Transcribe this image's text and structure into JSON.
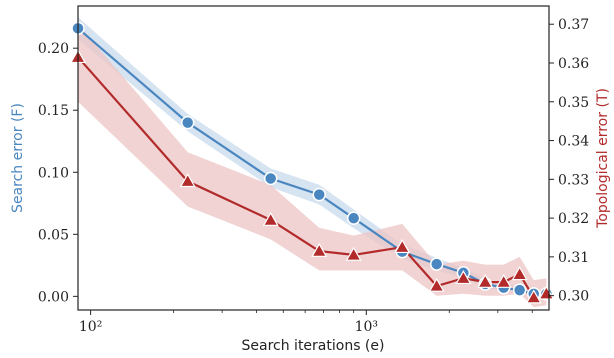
{
  "chart_data": {
    "type": "line",
    "xscale": "log",
    "xlim": [
      90,
      4600
    ],
    "xlabel": "Search iterations (e)",
    "x_ticks": [
      {
        "value": 100,
        "label": "10²"
      },
      {
        "value": 1000,
        "label": "10³"
      }
    ],
    "left_axis": {
      "label": "Search error (F)",
      "color": "#4a86c0",
      "ylim": [
        -0.011,
        0.234
      ],
      "ticks": [
        {
          "value": 0.0,
          "label": "0.00"
        },
        {
          "value": 0.05,
          "label": "0.05"
        },
        {
          "value": 0.1,
          "label": "0.10"
        },
        {
          "value": 0.15,
          "label": "0.15"
        },
        {
          "value": 0.2,
          "label": "0.20"
        }
      ]
    },
    "right_axis": {
      "label": "Topological error (T)",
      "color": "#b22a2a",
      "ylim": [
        0.2963,
        0.3747
      ],
      "ticks": [
        {
          "value": 0.3,
          "label": "0.30"
        },
        {
          "value": 0.31,
          "label": "0.31"
        },
        {
          "value": 0.32,
          "label": "0.32"
        },
        {
          "value": 0.33,
          "label": "0.33"
        },
        {
          "value": 0.34,
          "label": "0.34"
        },
        {
          "value": 0.35,
          "label": "0.35"
        },
        {
          "value": 0.36,
          "label": "0.36"
        },
        {
          "value": 0.37,
          "label": "0.37"
        }
      ]
    },
    "series": [
      {
        "axis": "left",
        "marker": "circle",
        "color": "#4a86c0",
        "band_color": "#c8d9ec",
        "points": [
          {
            "x": 90,
            "y": 0.216,
            "lo": 0.207,
            "hi": 0.225
          },
          {
            "x": 225,
            "y": 0.14,
            "lo": 0.133,
            "hi": 0.147
          },
          {
            "x": 450,
            "y": 0.095,
            "lo": 0.088,
            "hi": 0.103
          },
          {
            "x": 675,
            "y": 0.082,
            "lo": 0.074,
            "hi": 0.09
          },
          {
            "x": 900,
            "y": 0.063,
            "lo": 0.055,
            "hi": 0.07
          },
          {
            "x": 1350,
            "y": 0.036,
            "lo": 0.03,
            "hi": 0.042
          },
          {
            "x": 1800,
            "y": 0.026,
            "lo": 0.021,
            "hi": 0.031
          },
          {
            "x": 2250,
            "y": 0.019,
            "lo": 0.015,
            "hi": 0.023
          },
          {
            "x": 2700,
            "y": 0.01,
            "lo": 0.007,
            "hi": 0.014
          },
          {
            "x": 3150,
            "y": 0.007,
            "lo": 0.004,
            "hi": 0.01
          },
          {
            "x": 3600,
            "y": 0.005,
            "lo": 0.003,
            "hi": 0.008
          },
          {
            "x": 4050,
            "y": 0.002,
            "lo": 0.0,
            "hi": 0.004
          },
          {
            "x": 4500,
            "y": 0.002,
            "lo": 0.0,
            "hi": 0.004
          }
        ]
      },
      {
        "axis": "right",
        "marker": "triangle",
        "color": "#b22a2a",
        "band_color": "#ecc4c4",
        "points": [
          {
            "x": 90,
            "y": 0.3615,
            "lo": 0.35,
            "hi": 0.37
          },
          {
            "x": 225,
            "y": 0.3295,
            "lo": 0.323,
            "hi": 0.337
          },
          {
            "x": 450,
            "y": 0.3195,
            "lo": 0.3145,
            "hi": 0.3285
          },
          {
            "x": 675,
            "y": 0.3115,
            "lo": 0.3065,
            "hi": 0.3175
          },
          {
            "x": 900,
            "y": 0.3105,
            "lo": 0.3065,
            "hi": 0.3155
          },
          {
            "x": 1350,
            "y": 0.3125,
            "lo": 0.3065,
            "hi": 0.3185
          },
          {
            "x": 1800,
            "y": 0.3025,
            "lo": 0.3,
            "hi": 0.308
          },
          {
            "x": 2250,
            "y": 0.3045,
            "lo": 0.3005,
            "hi": 0.309
          },
          {
            "x": 2700,
            "y": 0.3035,
            "lo": 0.3,
            "hi": 0.308
          },
          {
            "x": 3150,
            "y": 0.3035,
            "lo": 0.3,
            "hi": 0.308
          },
          {
            "x": 3600,
            "y": 0.3055,
            "lo": 0.3005,
            "hi": 0.31
          },
          {
            "x": 4050,
            "y": 0.2995,
            "lo": 0.297,
            "hi": 0.304
          },
          {
            "x": 4500,
            "y": 0.3005,
            "lo": 0.2975,
            "hi": 0.3045
          }
        ]
      }
    ]
  }
}
